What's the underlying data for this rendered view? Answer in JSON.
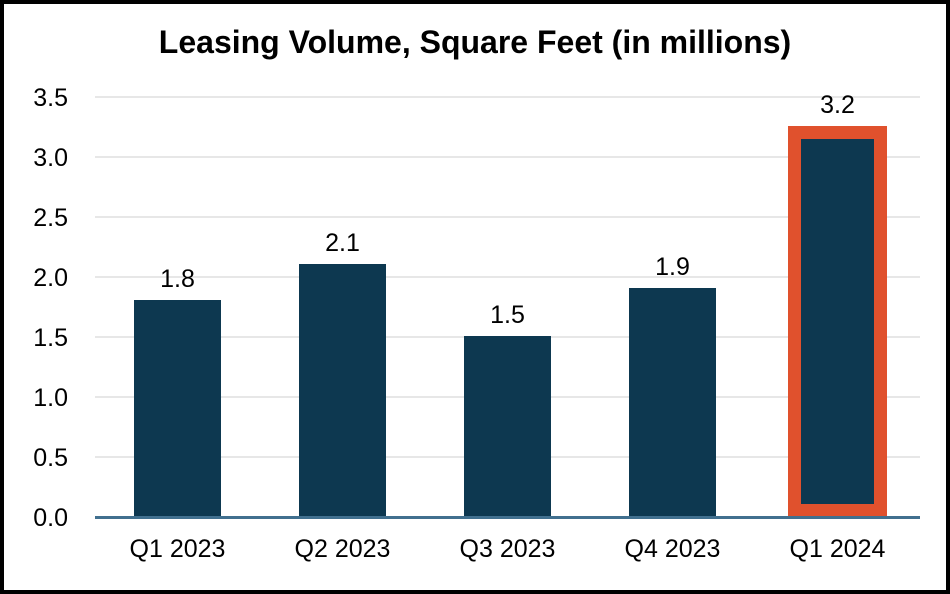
{
  "title": "Leasing Volume, Square Feet (in millions)",
  "chart_data": {
    "type": "bar",
    "title": "Leasing Volume, Square Feet (in millions)",
    "categories": [
      "Q1 2023",
      "Q2 2023",
      "Q3 2023",
      "Q4 2023",
      "Q1 2024"
    ],
    "values": [
      1.8,
      2.1,
      1.5,
      1.9,
      3.2
    ],
    "data_labels": [
      "1.8",
      "2.1",
      "1.5",
      "1.9",
      "3.2"
    ],
    "highlighted_category": "Q1 2024",
    "highlight_index": 4,
    "ytick_labels": [
      "0.0",
      "0.5",
      "1.0",
      "1.5",
      "2.0",
      "2.5",
      "3.0",
      "3.5"
    ],
    "yticks": [
      0.0,
      0.5,
      1.0,
      1.5,
      2.0,
      2.5,
      3.0,
      3.5
    ],
    "ylim": [
      0,
      3.5
    ],
    "xlabel": "",
    "ylabel": "",
    "grid": true,
    "legend": "none",
    "colors": {
      "bar": "#0D3850",
      "highlight_border": "#E0512D",
      "axis_line": "#41708F",
      "gridline": "#E7E7E7",
      "text": "#000000",
      "background": "#FFFFFF",
      "frame_border": "#000000"
    }
  }
}
